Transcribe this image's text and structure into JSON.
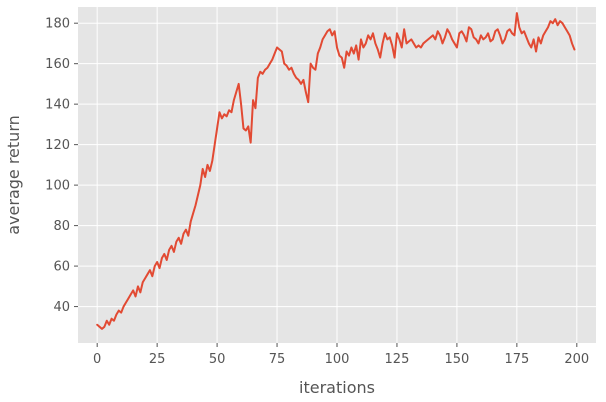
{
  "chart_data": {
    "type": "line",
    "xlabel": "iterations",
    "ylabel": "average return",
    "xlim": [
      -8,
      208
    ],
    "ylim": [
      22,
      188
    ],
    "xticks": [
      0,
      25,
      50,
      75,
      100,
      125,
      150,
      175,
      200
    ],
    "yticks": [
      40,
      60,
      80,
      100,
      120,
      140,
      160,
      180
    ],
    "xtick_labels": [
      "0",
      "25",
      "50",
      "75",
      "100",
      "125",
      "150",
      "175",
      "200"
    ],
    "ytick_labels": [
      "40",
      "60",
      "80",
      "100",
      "120",
      "140",
      "160",
      "180"
    ],
    "grid": true,
    "style": {
      "background": "#e5e5e5",
      "grid_color": "#ffffff",
      "line_color": "#e24a33",
      "text_color": "#555555"
    },
    "series": [
      {
        "x": [
          0,
          1,
          2,
          3,
          4,
          5,
          6,
          7,
          8,
          9,
          10,
          11,
          12,
          13,
          14,
          15,
          16,
          17,
          18,
          19,
          20,
          21,
          22,
          23,
          24,
          25,
          26,
          27,
          28,
          29,
          30,
          31,
          32,
          33,
          34,
          35,
          36,
          37,
          38,
          39,
          40,
          41,
          42,
          43,
          44,
          45,
          46,
          47,
          48,
          49,
          50,
          51,
          52,
          53,
          54,
          55,
          56,
          57,
          58,
          59,
          60,
          61,
          62,
          63,
          64,
          65,
          66,
          67,
          68,
          69,
          70,
          71,
          72,
          73,
          74,
          75,
          76,
          77,
          78,
          79,
          80,
          81,
          82,
          83,
          84,
          85,
          86,
          87,
          88,
          89,
          90,
          91,
          92,
          93,
          94,
          95,
          96,
          97,
          98,
          99,
          100,
          101,
          102,
          103,
          104,
          105,
          106,
          107,
          108,
          109,
          110,
          111,
          112,
          113,
          114,
          115,
          116,
          117,
          118,
          119,
          120,
          121,
          122,
          123,
          124,
          125,
          126,
          127,
          128,
          129,
          130,
          131,
          132,
          133,
          134,
          135,
          136,
          137,
          138,
          139,
          140,
          141,
          142,
          143,
          144,
          145,
          146,
          147,
          148,
          149,
          150,
          151,
          152,
          153,
          154,
          155,
          156,
          157,
          158,
          159,
          160,
          161,
          162,
          163,
          164,
          165,
          166,
          167,
          168,
          169,
          170,
          171,
          172,
          173,
          174,
          175,
          176,
          177,
          178,
          179,
          180,
          181,
          182,
          183,
          184,
          185,
          186,
          187,
          188,
          189,
          190,
          191,
          192,
          193,
          194,
          195,
          196,
          197,
          198,
          199
        ],
        "y": [
          31,
          30,
          29,
          30,
          33,
          31,
          34,
          33,
          36,
          38,
          37,
          40,
          42,
          44,
          46,
          48,
          45,
          50,
          47,
          52,
          54,
          56,
          58,
          55,
          60,
          62,
          59,
          64,
          66,
          63,
          68,
          70,
          67,
          72,
          74,
          71,
          76,
          78,
          75,
          82,
          86,
          90,
          95,
          100,
          108,
          104,
          110,
          107,
          112,
          120,
          128,
          136,
          133,
          135,
          134,
          137,
          136,
          142,
          146,
          150,
          140,
          128,
          127,
          129,
          121,
          142,
          138,
          153,
          156,
          155,
          157,
          158,
          160,
          162,
          165,
          168,
          167,
          166,
          160,
          159,
          157,
          158,
          155,
          153,
          152,
          150,
          152,
          146,
          141,
          160,
          158,
          157,
          165,
          168,
          172,
          174,
          176,
          177,
          174,
          176,
          168,
          164,
          163,
          158,
          166,
          164,
          168,
          165,
          169,
          162,
          172,
          168,
          170,
          174,
          172,
          175,
          170,
          167,
          163,
          170,
          175,
          172,
          173,
          169,
          163,
          175,
          172,
          168,
          177,
          170,
          171,
          172,
          170,
          168,
          169,
          168,
          170,
          171,
          172,
          173,
          174,
          172,
          176,
          174,
          170,
          173,
          177,
          175,
          172,
          170,
          168,
          175,
          176,
          174,
          171,
          178,
          177,
          173,
          172,
          170,
          174,
          172,
          173,
          175,
          171,
          172,
          176,
          177,
          174,
          170,
          172,
          176,
          177,
          175,
          174,
          185,
          178,
          175,
          176,
          173,
          170,
          168,
          172,
          166,
          173,
          170,
          174,
          176,
          178,
          181,
          180,
          182,
          179,
          181,
          180,
          178,
          176,
          174,
          170,
          167
        ]
      }
    ]
  }
}
